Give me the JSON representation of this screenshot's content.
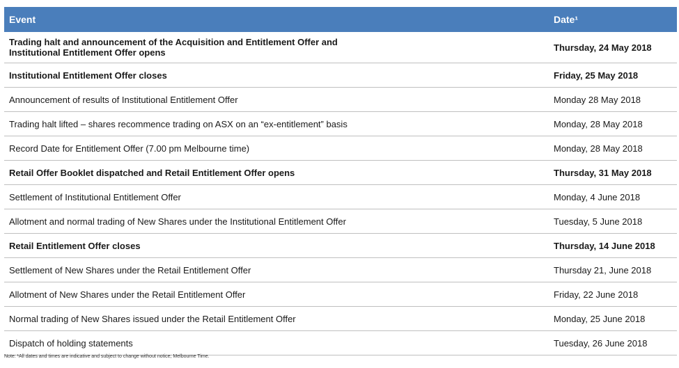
{
  "table": {
    "header": {
      "event": "Event",
      "date": "Date¹"
    },
    "rows": [
      {
        "event": "Trading halt and announcement of the Acquisition and Entitlement Offer and Institutional Entitlement Offer opens",
        "date": "Thursday, 24 May 2018",
        "bold": true
      },
      {
        "event": "Institutional Entitlement Offer closes",
        "date": "Friday, 25 May 2018",
        "bold": true
      },
      {
        "event": "Announcement of results of Institutional Entitlement Offer",
        "date": "Monday 28 May 2018",
        "bold": false
      },
      {
        "event": "Trading halt lifted – shares recommence trading on ASX on an “ex-entitlement” basis",
        "date": "Monday, 28 May 2018",
        "bold": false
      },
      {
        "event": "Record Date for Entitlement Offer (7.00 pm Melbourne time)",
        "date": "Monday, 28 May 2018",
        "bold": false
      },
      {
        "event": "Retail Offer Booklet dispatched and Retail Entitlement Offer opens",
        "date": "Thursday, 31 May 2018",
        "bold": true
      },
      {
        "event": "Settlement of Institutional Entitlement Offer",
        "date": "Monday, 4 June 2018",
        "bold": false
      },
      {
        "event": "Allotment and normal trading of New Shares under the Institutional Entitlement Offer",
        "date": "Tuesday, 5 June 2018",
        "bold": false
      },
      {
        "event": "Retail Entitlement Offer closes",
        "date": "Thursday, 14 June 2018",
        "bold": true
      },
      {
        "event": "Settlement of New Shares under the Retail Entitlement Offer",
        "date": "Thursday 21, June 2018",
        "bold": false
      },
      {
        "event": "Allotment of New Shares under the Retail Entitlement Offer",
        "date": "Friday, 22 June 2018",
        "bold": false
      },
      {
        "event": "Normal trading of New Shares issued under the Retail Entitlement Offer",
        "date": "Monday, 25 June 2018",
        "bold": false
      },
      {
        "event": "Dispatch of holding statements",
        "date": "Tuesday, 26 June 2018",
        "bold": false
      }
    ]
  },
  "note": "Note: ¹All dates and times are indicative and subject to change without notice; Melbourne Time."
}
